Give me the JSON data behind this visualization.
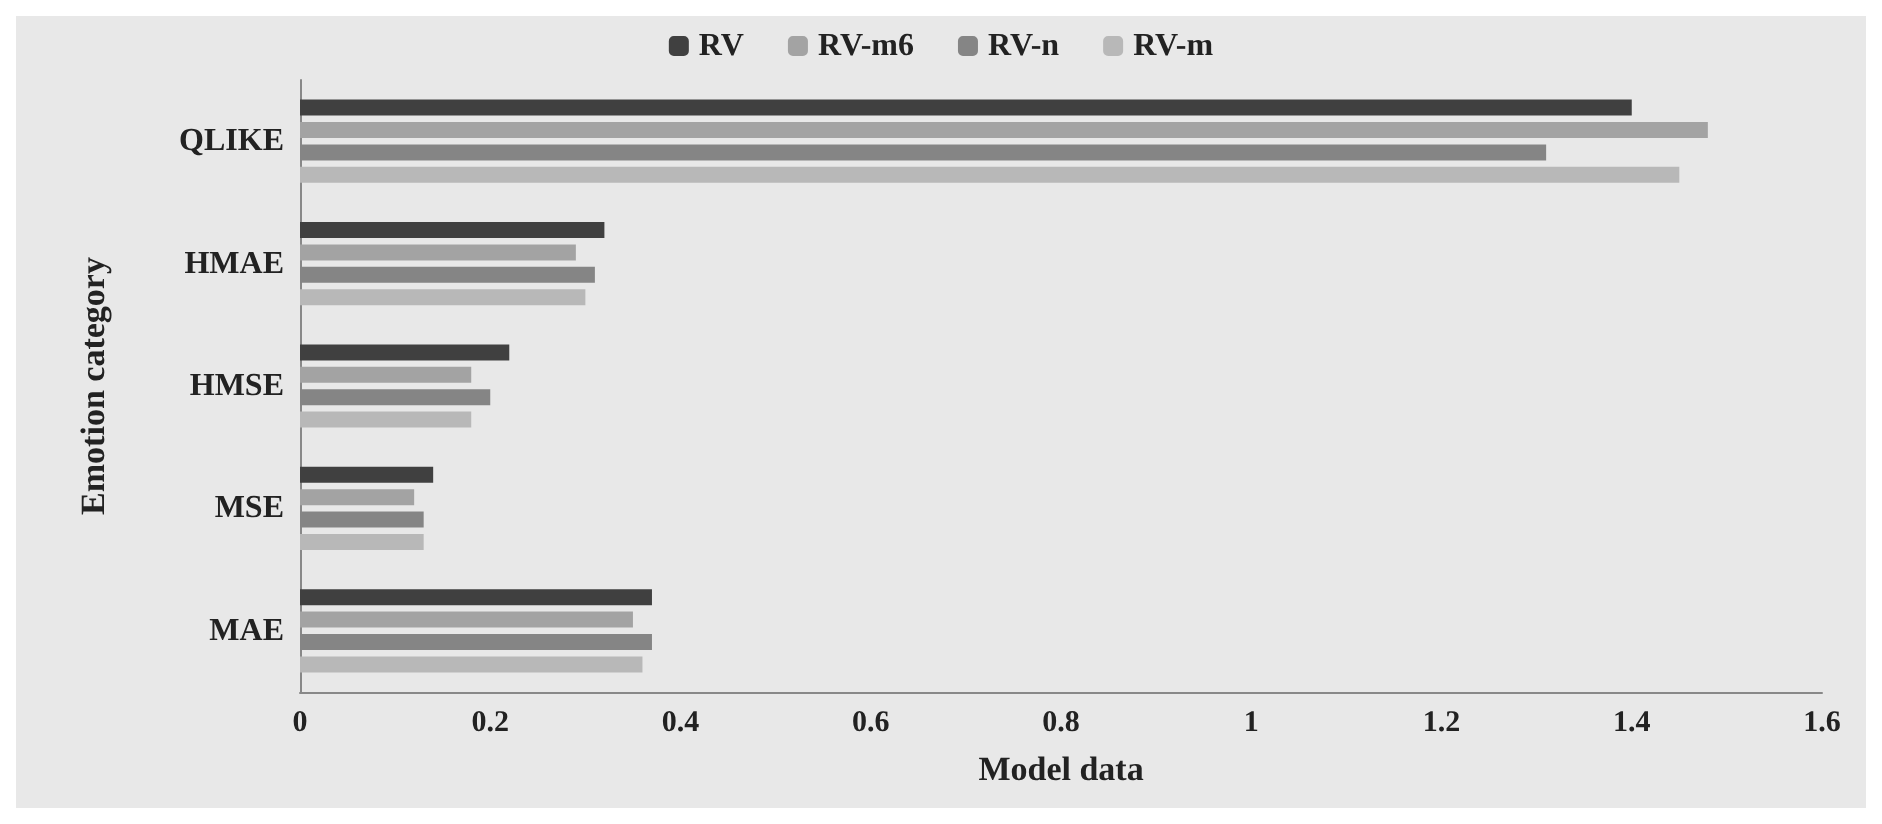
{
  "chart_data": {
    "type": "bar",
    "orientation": "horizontal",
    "xlabel": "Model data",
    "ylabel": "Emotion category",
    "categories": [
      "QLIKE",
      "HMAE",
      "HMSE",
      "MSE",
      "MAE"
    ],
    "series": [
      {
        "name": "RV",
        "color": "#404040",
        "values": [
          1.4,
          0.32,
          0.22,
          0.14,
          0.37
        ]
      },
      {
        "name": "RV-m6",
        "color": "#a3a3a3",
        "values": [
          1.48,
          0.29,
          0.18,
          0.12,
          0.35
        ]
      },
      {
        "name": "RV-n",
        "color": "#858585",
        "values": [
          1.31,
          0.31,
          0.2,
          0.13,
          0.37
        ]
      },
      {
        "name": "RV-m",
        "color": "#b8b8b8",
        "values": [
          1.45,
          0.3,
          0.18,
          0.13,
          0.36
        ]
      }
    ],
    "xlim": [
      0,
      1.6
    ],
    "xticks": [
      0,
      0.2,
      0.4,
      0.6,
      0.8,
      1,
      1.2,
      1.4,
      1.6
    ],
    "grid": false,
    "legend": "top"
  }
}
